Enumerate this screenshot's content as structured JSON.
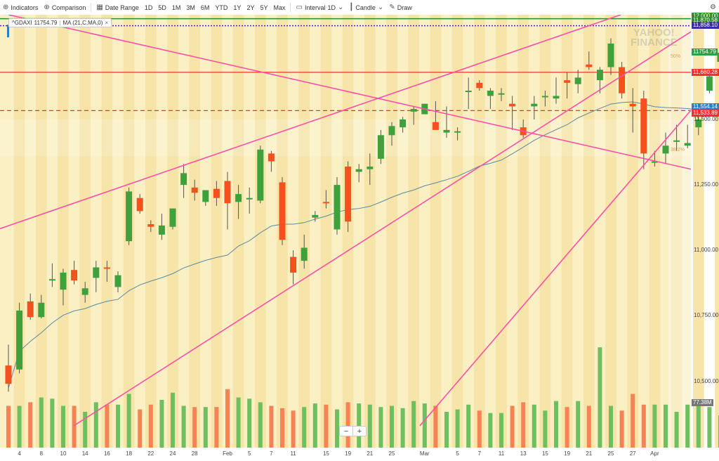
{
  "toolbar": {
    "indicators": "Indicators",
    "comparison": "Comparison",
    "date_range": "Date Range",
    "ranges": [
      "1D",
      "5D",
      "1M",
      "3M",
      "6M",
      "YTD",
      "1Y",
      "2Y",
      "5Y",
      "Max"
    ],
    "interval": "Interval",
    "interval_value": "1D",
    "chart_type": "Candle",
    "draw": "Draw"
  },
  "legend": {
    "symbol": "^GDAXI",
    "symbol_value": "11754.79",
    "ma_label": "MA (21,C,MA,0)",
    "close": "×"
  },
  "watermark": {
    "line1": "YAHOO!",
    "line2": "FINANCE"
  },
  "fib": {
    "label_50": "50%",
    "label_382": "38.2%"
  },
  "zoom": {
    "minus": "−",
    "plus": "+"
  },
  "price_tags": {
    "top_hidden": "12,000.00",
    "green_line": "11,870.58",
    "dotted_line": "11,858.10",
    "last_price": "11754.79",
    "red_solid": "11,680.28",
    "ma_value": "11,554.14",
    "red_dashed": "11,533.89"
  },
  "volume_tag": "77.38M",
  "colors": {
    "up": "#3fa13c",
    "down": "#f4511e",
    "vol_up": "#6dbf5f",
    "vol_down": "#f58355",
    "pink_line": "#ff4fa8",
    "red_line": "#ff2d2d",
    "ma_line": "#5b8aa0",
    "green_hline": "#2e8b2e",
    "dotted_hline": "#3a2fa6",
    "band_light": "#fbefc4",
    "band_dark": "#f6e4a8"
  },
  "chart_data": {
    "type": "candlestick",
    "title": "",
    "symbol": "^GDAXI",
    "xlabel": "",
    "ylabel": "",
    "ylim": [
      10330,
      11900
    ],
    "y_ticks": [
      {
        "value": 10500,
        "label": "10,500.00"
      },
      {
        "value": 10750,
        "label": "10,750.00"
      },
      {
        "value": 11000,
        "label": "11,000.00"
      },
      {
        "value": 11250,
        "label": "11,250.00"
      },
      {
        "value": 11500,
        "label": "11,500.00"
      }
    ],
    "x_tick_labels": [
      {
        "i": 1,
        "label": "4"
      },
      {
        "i": 3,
        "label": "8"
      },
      {
        "i": 5,
        "label": "10"
      },
      {
        "i": 7,
        "label": "14"
      },
      {
        "i": 9,
        "label": "16"
      },
      {
        "i": 11,
        "label": "18"
      },
      {
        "i": 13,
        "label": "22"
      },
      {
        "i": 15,
        "label": "24"
      },
      {
        "i": 17,
        "label": "28"
      },
      {
        "i": 20,
        "label": "Feb"
      },
      {
        "i": 22,
        "label": "5"
      },
      {
        "i": 24,
        "label": "7"
      },
      {
        "i": 26,
        "label": "11"
      },
      {
        "i": 29,
        "label": "15"
      },
      {
        "i": 31,
        "label": "19"
      },
      {
        "i": 33,
        "label": "21"
      },
      {
        "i": 35,
        "label": "25"
      },
      {
        "i": 38,
        "label": "Mar"
      },
      {
        "i": 41,
        "label": "5"
      },
      {
        "i": 43,
        "label": "7"
      },
      {
        "i": 45,
        "label": "11"
      },
      {
        "i": 47,
        "label": "13"
      },
      {
        "i": 49,
        "label": "15"
      },
      {
        "i": 51,
        "label": "19"
      },
      {
        "i": 53,
        "label": "21"
      },
      {
        "i": 55,
        "label": "25"
      },
      {
        "i": 57,
        "label": "27"
      },
      {
        "i": 59,
        "label": "Apr"
      }
    ],
    "candles": [
      {
        "o": 10560,
        "h": 10640,
        "l": 10460,
        "c": 10490
      },
      {
        "o": 10545,
        "h": 10800,
        "l": 10530,
        "c": 10770
      },
      {
        "o": 10805,
        "h": 10835,
        "l": 10735,
        "c": 10745
      },
      {
        "o": 10745,
        "h": 10830,
        "l": 10740,
        "c": 10800
      },
      {
        "o": 10885,
        "h": 10950,
        "l": 10860,
        "c": 10890
      },
      {
        "o": 10850,
        "h": 10930,
        "l": 10790,
        "c": 10915
      },
      {
        "o": 10925,
        "h": 10960,
        "l": 10870,
        "c": 10885
      },
      {
        "o": 10830,
        "h": 10880,
        "l": 10800,
        "c": 10855
      },
      {
        "o": 10895,
        "h": 10960,
        "l": 10840,
        "c": 10935
      },
      {
        "o": 10935,
        "h": 10960,
        "l": 10880,
        "c": 10930
      },
      {
        "o": 10860,
        "h": 10920,
        "l": 10840,
        "c": 10905
      },
      {
        "o": 11035,
        "h": 11240,
        "l": 11020,
        "c": 11225
      },
      {
        "o": 11200,
        "h": 11215,
        "l": 11140,
        "c": 11150
      },
      {
        "o": 11100,
        "h": 11115,
        "l": 11070,
        "c": 11090
      },
      {
        "o": 11060,
        "h": 11140,
        "l": 11040,
        "c": 11095
      },
      {
        "o": 11090,
        "h": 11150,
        "l": 11080,
        "c": 11160
      },
      {
        "o": 11250,
        "h": 11330,
        "l": 11200,
        "c": 11295
      },
      {
        "o": 11240,
        "h": 11270,
        "l": 11190,
        "c": 11220
      },
      {
        "o": 11185,
        "h": 11230,
        "l": 11170,
        "c": 11230
      },
      {
        "o": 11235,
        "h": 11265,
        "l": 11170,
        "c": 11200
      },
      {
        "o": 11265,
        "h": 11300,
        "l": 11080,
        "c": 11180
      },
      {
        "o": 11185,
        "h": 11250,
        "l": 11120,
        "c": 11215
      },
      {
        "o": 11200,
        "h": 11240,
        "l": 11140,
        "c": 11200
      },
      {
        "o": 11190,
        "h": 11400,
        "l": 11180,
        "c": 11385
      },
      {
        "o": 11370,
        "h": 11380,
        "l": 11300,
        "c": 11340
      },
      {
        "o": 11260,
        "h": 11280,
        "l": 11020,
        "c": 11040
      },
      {
        "o": 10975,
        "h": 11000,
        "l": 10870,
        "c": 10915
      },
      {
        "o": 10960,
        "h": 11060,
        "l": 10930,
        "c": 11010
      },
      {
        "o": 11125,
        "h": 11150,
        "l": 11110,
        "c": 11135
      },
      {
        "o": 11185,
        "h": 11230,
        "l": 11160,
        "c": 11180
      },
      {
        "o": 11080,
        "h": 11280,
        "l": 11060,
        "c": 11250
      },
      {
        "o": 11320,
        "h": 11340,
        "l": 11070,
        "c": 11110
      },
      {
        "o": 11300,
        "h": 11330,
        "l": 11260,
        "c": 11310
      },
      {
        "o": 11310,
        "h": 11370,
        "l": 11250,
        "c": 11320
      },
      {
        "o": 11350,
        "h": 11460,
        "l": 11330,
        "c": 11440
      },
      {
        "o": 11440,
        "h": 11490,
        "l": 11400,
        "c": 11475
      },
      {
        "o": 11470,
        "h": 11510,
        "l": 11450,
        "c": 11500
      },
      {
        "o": 11530,
        "h": 11550,
        "l": 11480,
        "c": 11540
      },
      {
        "o": 11520,
        "h": 11560,
        "l": 11520,
        "c": 11560
      },
      {
        "o": 11490,
        "h": 11570,
        "l": 11460,
        "c": 11460
      },
      {
        "o": 11450,
        "h": 11550,
        "l": 11430,
        "c": 11460
      },
      {
        "o": 11455,
        "h": 11470,
        "l": 11420,
        "c": 11455
      },
      {
        "o": 11610,
        "h": 11660,
        "l": 11540,
        "c": 11610
      },
      {
        "o": 11640,
        "h": 11650,
        "l": 11610,
        "c": 11620
      },
      {
        "o": 11590,
        "h": 11620,
        "l": 11540,
        "c": 11610
      },
      {
        "o": 11600,
        "h": 11620,
        "l": 11570,
        "c": 11600
      },
      {
        "o": 11560,
        "h": 11590,
        "l": 11460,
        "c": 11550
      },
      {
        "o": 11470,
        "h": 11500,
        "l": 11430,
        "c": 11440
      },
      {
        "o": 11550,
        "h": 11590,
        "l": 11500,
        "c": 11560
      },
      {
        "o": 11590,
        "h": 11610,
        "l": 11550,
        "c": 11590
      },
      {
        "o": 11580,
        "h": 11660,
        "l": 11560,
        "c": 11590
      },
      {
        "o": 11650,
        "h": 11680,
        "l": 11580,
        "c": 11640
      },
      {
        "o": 11635,
        "h": 11690,
        "l": 11600,
        "c": 11660
      },
      {
        "o": 11710,
        "h": 11760,
        "l": 11690,
        "c": 11700
      },
      {
        "o": 11650,
        "h": 11700,
        "l": 11600,
        "c": 11690
      },
      {
        "o": 11700,
        "h": 11810,
        "l": 11670,
        "c": 11790
      },
      {
        "o": 11700,
        "h": 11720,
        "l": 11580,
        "c": 11600
      },
      {
        "o": 11560,
        "h": 11620,
        "l": 11450,
        "c": 11550
      },
      {
        "o": 11580,
        "h": 11610,
        "l": 11310,
        "c": 11370
      },
      {
        "o": 11340,
        "h": 11380,
        "l": 11320,
        "c": 11340
      },
      {
        "o": 11370,
        "h": 11450,
        "l": 11330,
        "c": 11400
      },
      {
        "o": 11415,
        "h": 11480,
        "l": 11380,
        "c": 11420
      },
      {
        "o": 11400,
        "h": 11480,
        "l": 11390,
        "c": 11410
      },
      {
        "o": 11470,
        "h": 11520,
        "l": 11440,
        "c": 11500
      },
      {
        "o": 11610,
        "h": 11680,
        "l": 11600,
        "c": 11665
      },
      {
        "o": 11720,
        "h": 11790,
        "l": 11690,
        "c": 11755
      }
    ],
    "volumes_rel": [
      0.35,
      0.35,
      0.38,
      0.42,
      0.41,
      0.35,
      0.35,
      0.3,
      0.38,
      0.36,
      0.36,
      0.45,
      0.32,
      0.36,
      0.4,
      0.46,
      0.35,
      0.34,
      0.34,
      0.34,
      0.49,
      0.42,
      0.41,
      0.38,
      0.35,
      0.33,
      0.31,
      0.34,
      0.37,
      0.36,
      0.32,
      0.38,
      0.37,
      0.36,
      0.34,
      0.35,
      0.33,
      0.39,
      0.37,
      0.35,
      0.3,
      0.32,
      0.36,
      0.31,
      0.29,
      0.29,
      0.35,
      0.38,
      0.36,
      0.31,
      0.39,
      0.34,
      0.39,
      0.35,
      0.84,
      0.35,
      0.31,
      0.45,
      0.36,
      0.36,
      0.36,
      0.3,
      0.36,
      0.4,
      0.34,
      0.27
    ]
  }
}
